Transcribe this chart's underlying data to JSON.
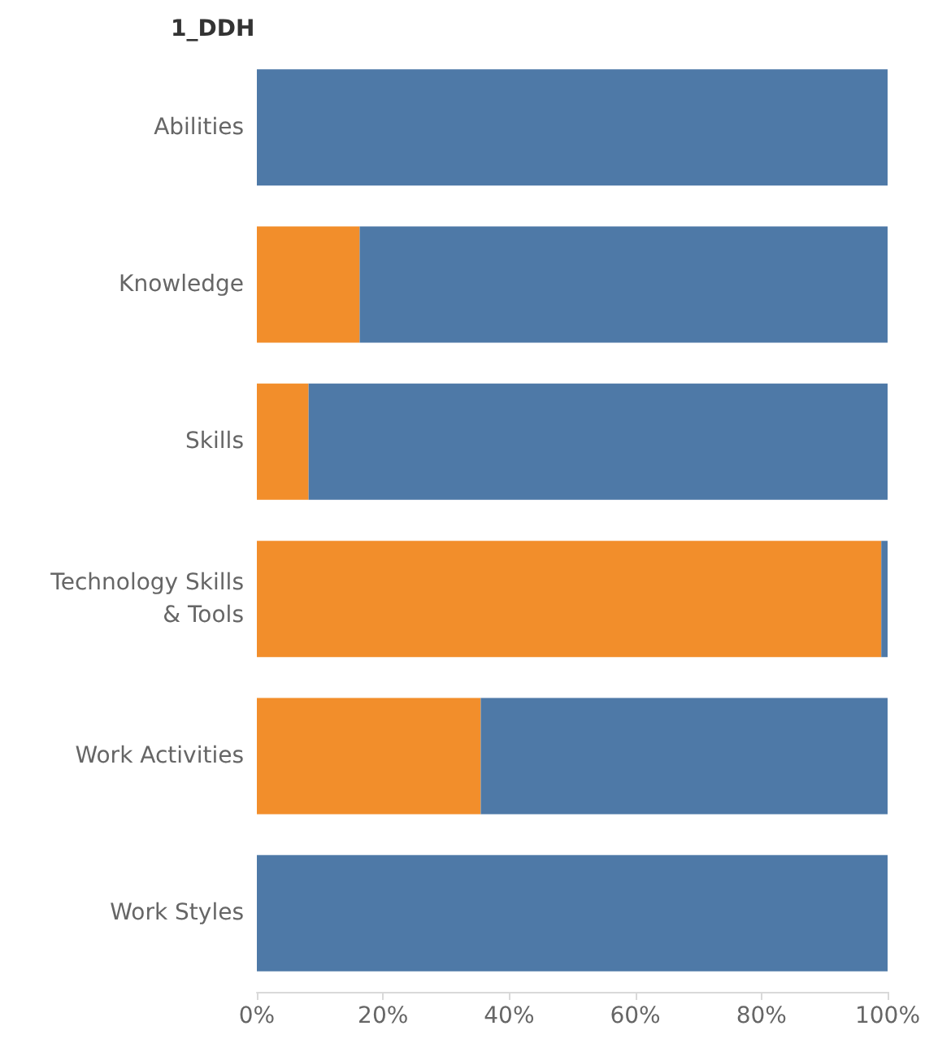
{
  "chart_data": {
    "type": "bar",
    "orientation": "horizontal",
    "stacked": true,
    "title": "1_DDH",
    "categories": [
      "Abilities",
      "Knowledge",
      "Skills",
      "Technology Skills & Tools",
      "Work Activities",
      "Work Styles"
    ],
    "series": [
      {
        "color": "#f28e2b",
        "values": [
          0,
          16.3,
          8.2,
          99,
          35.5,
          0
        ]
      },
      {
        "color": "#4e79a7",
        "values": [
          100,
          83.7,
          91.8,
          1,
          64.5,
          100
        ]
      }
    ],
    "xlim": [
      0,
      100
    ],
    "xticks": [
      {
        "value": 0,
        "label": "0%"
      },
      {
        "value": 20,
        "label": "20%"
      },
      {
        "value": 40,
        "label": "40%"
      },
      {
        "value": 60,
        "label": "60%"
      },
      {
        "value": 80,
        "label": "80%"
      },
      {
        "value": 100,
        "label": "100%"
      }
    ],
    "grid": false
  }
}
